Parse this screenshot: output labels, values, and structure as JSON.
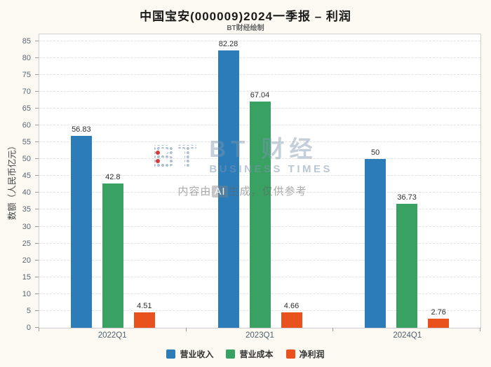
{
  "header": {
    "title": "中国宝安(000009)2024一季报 – 利润",
    "subtitle": "BT财经绘制"
  },
  "watermark": {
    "logo_mark": "BT",
    "logo_text": "BT 财经",
    "logo_subtext": "BUSINESS TIMES",
    "disclaimer_prefix": "内容由",
    "disclaimer_ai": "AI",
    "disclaimer_suffix": "生成，仅供参考"
  },
  "chart_data": {
    "type": "bar",
    "title": "中国宝安(000009)2024一季报 – 利润",
    "subtitle": "BT财经绘制",
    "categories": [
      "2022Q1",
      "2023Q1",
      "2024Q1"
    ],
    "series": [
      {
        "name": "营业收入",
        "color": "#2b7cb9",
        "values": [
          56.83,
          82.28,
          50
        ]
      },
      {
        "name": "营业成本",
        "color": "#39a263",
        "values": [
          42.8,
          67.04,
          36.73
        ]
      },
      {
        "name": "净利润",
        "color": "#e9511d",
        "values": [
          4.51,
          4.66,
          2.76
        ]
      }
    ],
    "xlabel": "",
    "ylabel": "数额（人民币亿元）",
    "ylim": [
      0,
      85
    ],
    "ytick_step": 5,
    "grid": "dashed-horizontal",
    "legend_position": "bottom"
  }
}
